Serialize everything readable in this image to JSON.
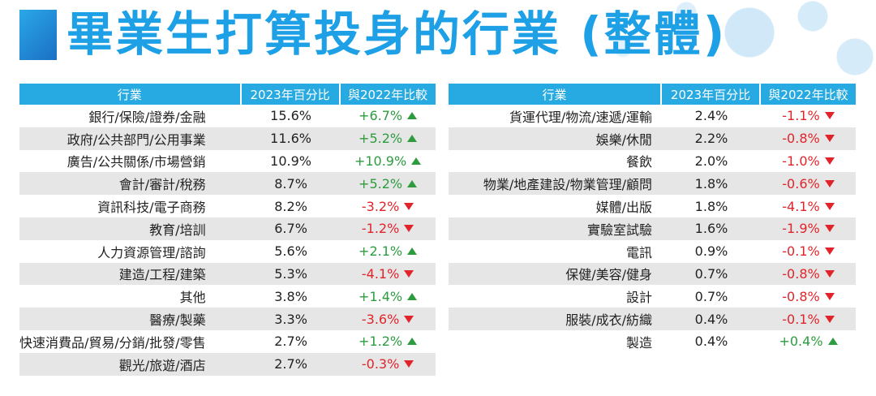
{
  "title": "畢業生打算投身的行業 (整體)",
  "chart_data": {
    "type": "table",
    "columns": [
      "行業",
      "2023年百分比",
      "與2022年比較"
    ],
    "left_rows": [
      {
        "industry": "銀行/保險/證券/金融",
        "pct2023": "15.6%",
        "change": "+6.7%",
        "dir": "up"
      },
      {
        "industry": "政府/公共部門/公用事業",
        "pct2023": "11.6%",
        "change": "+5.2%",
        "dir": "up"
      },
      {
        "industry": "廣告/公共關係/市場營銷",
        "pct2023": "10.9%",
        "change": "+10.9%",
        "dir": "up"
      },
      {
        "industry": "會計/審計/稅務",
        "pct2023": "8.7%",
        "change": "+5.2%",
        "dir": "up"
      },
      {
        "industry": "資訊科技/電子商務",
        "pct2023": "8.2%",
        "change": "-3.2%",
        "dir": "down"
      },
      {
        "industry": "教育/培訓",
        "pct2023": "6.7%",
        "change": "-1.2%",
        "dir": "down"
      },
      {
        "industry": "人力資源管理/諮詢",
        "pct2023": "5.6%",
        "change": "+2.1%",
        "dir": "up"
      },
      {
        "industry": "建造/工程/建築",
        "pct2023": "5.3%",
        "change": "-4.1%",
        "dir": "down"
      },
      {
        "industry": "其他",
        "pct2023": "3.8%",
        "change": "+1.4%",
        "dir": "up"
      },
      {
        "industry": "醫療/製藥",
        "pct2023": "3.3%",
        "change": "-3.6%",
        "dir": "down"
      },
      {
        "industry": "快速消費品/貿易/分銷/批發/零售",
        "pct2023": "2.7%",
        "change": "+1.2%",
        "dir": "up"
      },
      {
        "industry": "觀光/旅遊/酒店",
        "pct2023": "2.7%",
        "change": "-0.3%",
        "dir": "down"
      }
    ],
    "right_rows": [
      {
        "industry": "貨運代理/物流/速遞/運輸",
        "pct2023": "2.4%",
        "change": "-1.1%",
        "dir": "down"
      },
      {
        "industry": "娛樂/休閒",
        "pct2023": "2.2%",
        "change": "-0.8%",
        "dir": "down"
      },
      {
        "industry": "餐飲",
        "pct2023": "2.0%",
        "change": "-1.0%",
        "dir": "down"
      },
      {
        "industry": "物業/地產建設/物業管理/顧問",
        "pct2023": "1.8%",
        "change": "-0.6%",
        "dir": "down"
      },
      {
        "industry": "媒體/出版",
        "pct2023": "1.8%",
        "change": "-4.1%",
        "dir": "down"
      },
      {
        "industry": "實驗室試驗",
        "pct2023": "1.6%",
        "change": "-1.9%",
        "dir": "down"
      },
      {
        "industry": "電訊",
        "pct2023": "0.9%",
        "change": "-0.1%",
        "dir": "down"
      },
      {
        "industry": "保健/美容/健身",
        "pct2023": "0.7%",
        "change": "-0.8%",
        "dir": "down"
      },
      {
        "industry": "設計",
        "pct2023": "0.7%",
        "change": "-0.8%",
        "dir": "down"
      },
      {
        "industry": "服裝/成衣/紡織",
        "pct2023": "0.4%",
        "change": "-0.1%",
        "dir": "down"
      },
      {
        "industry": "製造",
        "pct2023": "0.4%",
        "change": "+0.4%",
        "dir": "up"
      }
    ],
    "colors": {
      "header": "#27aae1",
      "up": "#2c9c3e",
      "down": "#e0242a",
      "alt_row": "#e6e6e6",
      "title": "#1ea0e6"
    }
  }
}
